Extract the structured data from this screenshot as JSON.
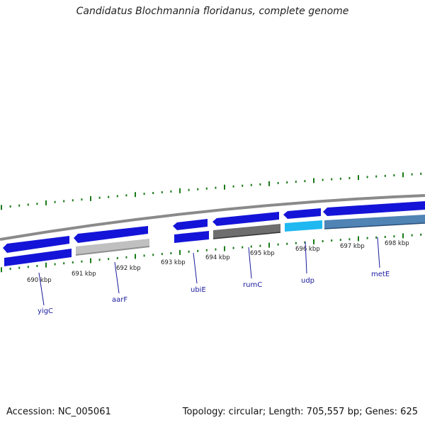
{
  "title": "Candidatus Blochmannia floridanus, complete genome",
  "footer": {
    "accession": "Accession: NC_005061",
    "summary": "Topology: circular; Length: 705,557 bp; Genes: 625"
  },
  "colors": {
    "backbone": "#8a8a8a",
    "gene_blue": "#1414d8",
    "gene_lightgray": "#c0c0c0",
    "gene_darkgray": "#6e6e6e",
    "gene_cyan": "#1fb8f0",
    "gene_steel": "#4f84b5",
    "tick_green": "#1a7a1a",
    "gene_label": "#1a1a9e"
  },
  "scale_labels": [
    "690 kbp",
    "691 kbp",
    "692 kbp",
    "693 kbp",
    "694 kbp",
    "695 kbp",
    "696 kbp",
    "697 kbp",
    "698 kbp"
  ],
  "gene_labels": [
    "yigC",
    "aarF",
    "ubiE",
    "rumC",
    "udp",
    "metE"
  ]
}
